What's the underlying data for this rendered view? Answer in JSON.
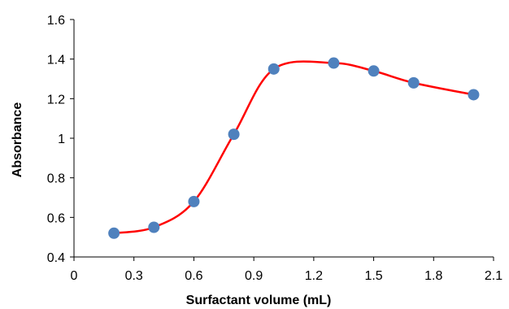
{
  "chart_data": {
    "type": "scatter",
    "title": "",
    "xlabel": "Surfactant volume  (mL)",
    "ylabel": "Absorbance",
    "xlim": [
      0,
      2.1
    ],
    "ylim": [
      0.4,
      1.6
    ],
    "x_ticks": [
      "0",
      "0.3",
      "0.6",
      "0.9",
      "1.2",
      "1.5",
      "1.8",
      "2.1"
    ],
    "y_ticks": [
      "0.4",
      "0.6",
      "0.8",
      "1",
      "1.2",
      "1.4",
      "1.6"
    ],
    "grid": false,
    "legend": "none",
    "series": [
      {
        "x": [
          0.2,
          0.4,
          0.6,
          0.8,
          1.0,
          1.3,
          1.5,
          1.7,
          2.0
        ],
        "y": [
          0.52,
          0.55,
          0.68,
          1.02,
          1.35,
          1.38,
          1.34,
          1.28,
          1.22
        ],
        "marker_color": "#4f81bd",
        "line": "smooth",
        "line_color": "#ff0000"
      }
    ]
  }
}
